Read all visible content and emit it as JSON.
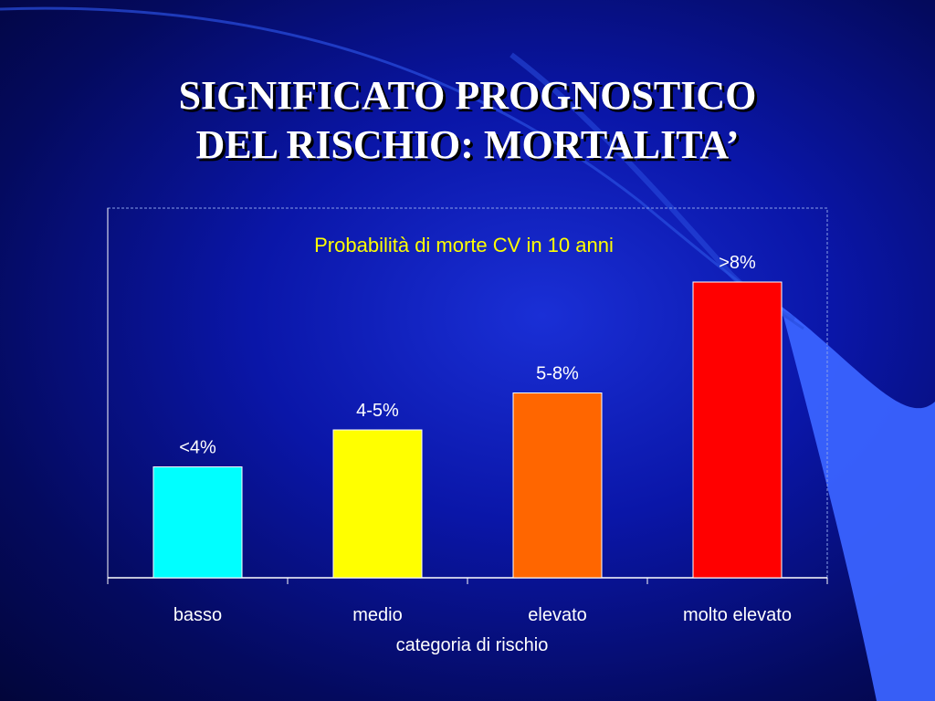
{
  "slide": {
    "title_line1": "SIGNIFICATO PROGNOSTICO",
    "title_line2": "DEL RISCHIO: MORTALITA’"
  },
  "colors": {
    "background": "#0a16a8",
    "accent_shape": "#3a63ff",
    "chart_title": "#ffff00",
    "text": "#ffffff"
  },
  "chart_data": {
    "type": "bar",
    "title": "Probabilità di morte CV in 10 anni",
    "xlabel": "categoria di rischio",
    "ylabel": "",
    "categories": [
      "basso",
      "medio",
      "elevato",
      "molto elevato"
    ],
    "values": [
      3,
      4,
      5,
      8
    ],
    "data_labels": [
      "<4%",
      "4-5%",
      "5-8%",
      ">8%"
    ],
    "bar_colors": [
      "#00ffff",
      "#ffff00",
      "#ff6600",
      "#ff0000"
    ],
    "ylim": [
      0,
      10
    ],
    "grid": false,
    "legend": "none"
  }
}
